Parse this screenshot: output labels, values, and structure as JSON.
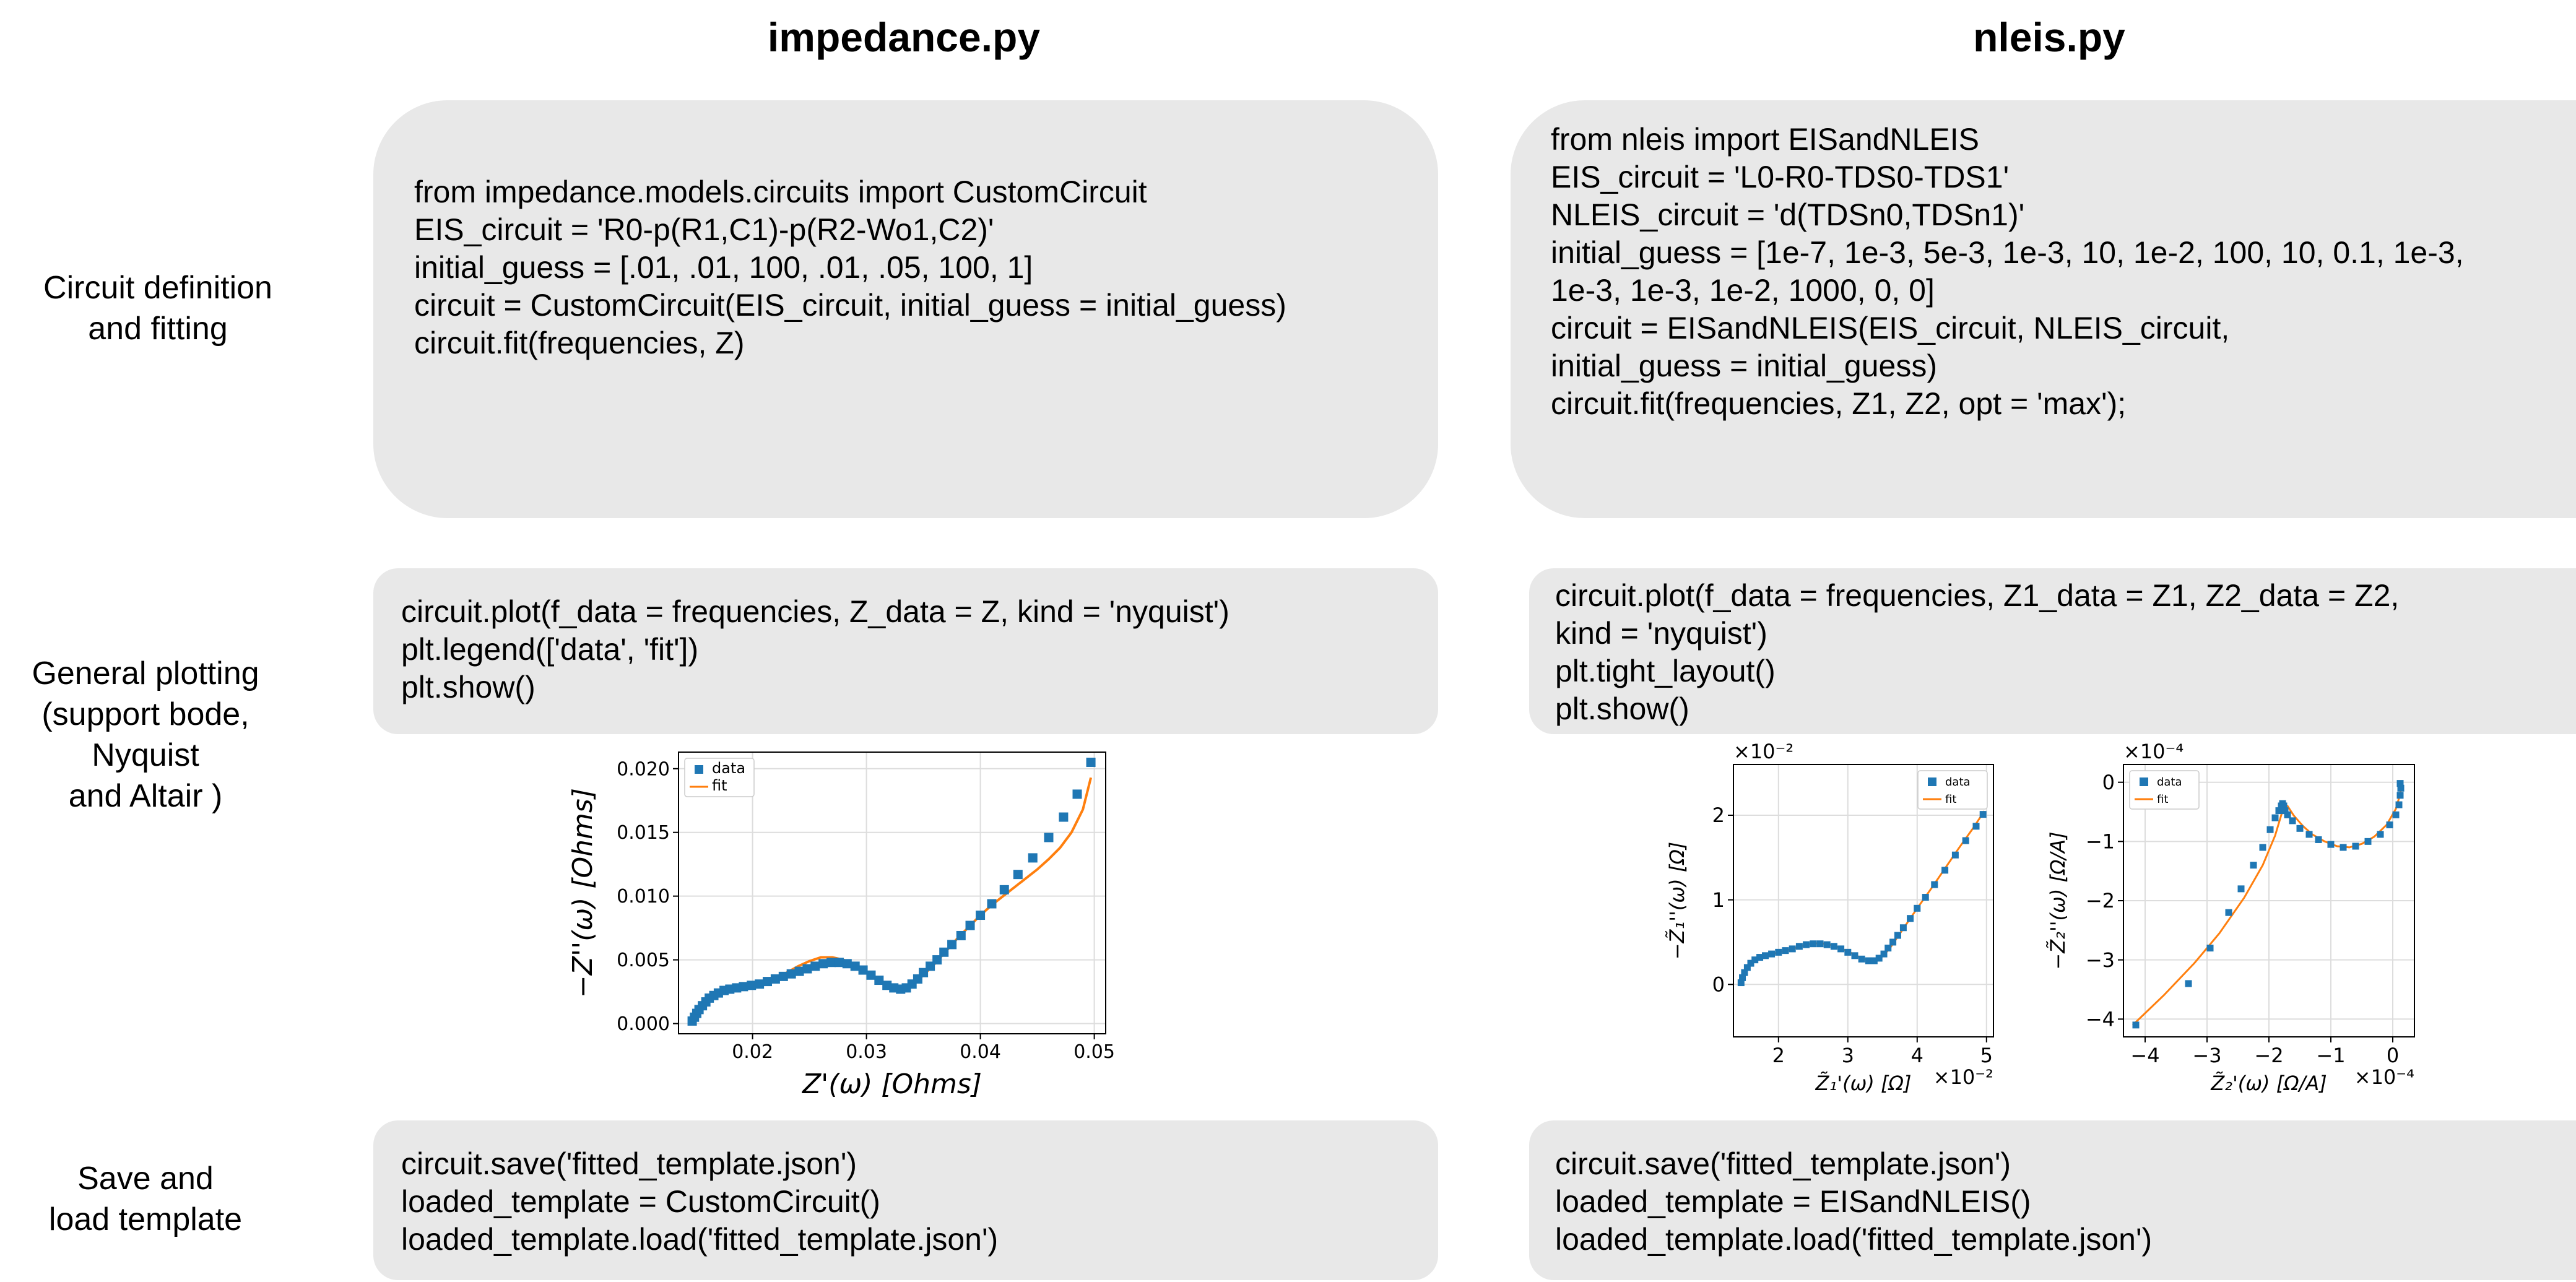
{
  "columns": {
    "left_title": "impedance.py",
    "right_title": "nleis.py"
  },
  "rows": {
    "fitting": "Circuit definition\nand fitting",
    "plotting": "General plotting\n(support bode,\nNyquist\nand Altair )",
    "save": "Save and\nload template"
  },
  "code": {
    "left_fit": [
      "from impedance.models.circuits import CustomCircuit",
      "",
      "EIS_circuit = 'R0-p(R1,C1)-p(R2-Wo1,C2)'",
      "initial_guess = [.01, .01, 100, .01, .05, 100, 1]",
      "",
      "circuit = CustomCircuit(EIS_circuit, initial_guess = initial_guess)",
      "circuit.fit(frequencies, Z)"
    ],
    "right_fit": [
      "from nleis import EISandNLEIS",
      "",
      "EIS_circuit = 'L0-R0-TDS0-TDS1'",
      "NLEIS_circuit = 'd(TDSn0,TDSn1)'",
      "",
      "initial_guess = [1e-7, 1e-3, 5e-3, 1e-3, 10, 1e-2, 100, 10, 0.1, 1e-3,",
      "1e-3, 1e-3, 1e-2, 1000, 0, 0]",
      "circuit = EISandNLEIS(EIS_circuit, NLEIS_circuit,",
      "initial_guess = initial_guess)",
      "circuit.fit(frequencies, Z1, Z2, opt = 'max');"
    ],
    "left_plot": [
      "circuit.plot(f_data = frequencies, Z_data = Z, kind = 'nyquist')",
      "plt.legend(['data', 'fit'])",
      "plt.show()"
    ],
    "right_plot": [
      "circuit.plot(f_data = frequencies, Z1_data = Z1, Z2_data = Z2,",
      "kind = 'nyquist')",
      "plt.tight_layout()",
      "plt.show()"
    ],
    "left_save": [
      "circuit.save('fitted_template.json')",
      "loaded_template = CustomCircuit()",
      "loaded_template.load('fitted_template.json')"
    ],
    "right_save": [
      "circuit.save('fitted_template.json')",
      "loaded_template = EISandNLEIS()",
      "loaded_template.load('fitted_template.json')"
    ]
  },
  "colors": {
    "data": "#1f77b4",
    "fit": "#ff7f0e",
    "box": "#e8e8e8"
  },
  "chart_data": [
    {
      "id": "eis_nyquist",
      "type": "scatter",
      "xlabel": "Z'(ω) [Ohms]",
      "ylabel": "−Z''(ω) [Ohms]",
      "xlim": [
        0.0135,
        0.051
      ],
      "ylim": [
        -0.0008,
        0.0213
      ],
      "xticks": [
        0.02,
        0.03,
        0.04,
        0.05
      ],
      "xtick_labels": [
        "0.02",
        "0.03",
        "0.04",
        "0.05"
      ],
      "yticks": [
        0.0,
        0.005,
        0.01,
        0.015,
        0.02
      ],
      "ytick_labels": [
        "0.000",
        "0.005",
        "0.010",
        "0.015",
        "0.020"
      ],
      "legend": [
        "data",
        "fit"
      ],
      "x_multiplier": "",
      "y_multiplier": "",
      "series": [
        {
          "name": "data",
          "kind": "markers",
          "x": [
            0.0147,
            0.0149,
            0.0151,
            0.0153,
            0.0156,
            0.0159,
            0.0162,
            0.0166,
            0.017,
            0.0175,
            0.018,
            0.0186,
            0.0192,
            0.0199,
            0.0206,
            0.0213,
            0.022,
            0.0227,
            0.0234,
            0.0241,
            0.0248,
            0.0255,
            0.0262,
            0.0269,
            0.0276,
            0.0283,
            0.029,
            0.0297,
            0.0304,
            0.0311,
            0.0318,
            0.0324,
            0.033,
            0.0335,
            0.034,
            0.0345,
            0.035,
            0.0356,
            0.0362,
            0.0368,
            0.0375,
            0.0383,
            0.0391,
            0.04,
            0.041,
            0.0421,
            0.0433,
            0.0446,
            0.046,
            0.0473,
            0.0485,
            0.0497
          ],
          "y": [
            0.0002,
            0.0005,
            0.0008,
            0.0011,
            0.0014,
            0.0017,
            0.002,
            0.0022,
            0.0024,
            0.0026,
            0.0027,
            0.0028,
            0.0029,
            0.003,
            0.0031,
            0.0033,
            0.0035,
            0.0037,
            0.0039,
            0.0041,
            0.0043,
            0.0045,
            0.0047,
            0.0048,
            0.0048,
            0.0047,
            0.0045,
            0.0042,
            0.0038,
            0.0034,
            0.003,
            0.0028,
            0.0027,
            0.0028,
            0.0031,
            0.0035,
            0.004,
            0.0045,
            0.005,
            0.0056,
            0.0062,
            0.0069,
            0.0077,
            0.0085,
            0.0094,
            0.0105,
            0.0117,
            0.013,
            0.0146,
            0.0162,
            0.018,
            0.0205
          ]
        },
        {
          "name": "fit",
          "kind": "line",
          "x": [
            0.0147,
            0.015,
            0.0155,
            0.0162,
            0.017,
            0.018,
            0.019,
            0.02,
            0.021,
            0.022,
            0.023,
            0.024,
            0.025,
            0.026,
            0.027,
            0.028,
            0.029,
            0.03,
            0.031,
            0.0318,
            0.0325,
            0.033,
            0.0335,
            0.034,
            0.035,
            0.036,
            0.037,
            0.038,
            0.039,
            0.04,
            0.041,
            0.042,
            0.043,
            0.044,
            0.045,
            0.046,
            0.047,
            0.048,
            0.049,
            0.0497
          ],
          "y": [
            0.0001,
            0.0007,
            0.0014,
            0.002,
            0.0025,
            0.0028,
            0.003,
            0.0031,
            0.0032,
            0.0035,
            0.004,
            0.0045,
            0.0049,
            0.0052,
            0.0052,
            0.005,
            0.0046,
            0.0041,
            0.0035,
            0.003,
            0.0027,
            0.0026,
            0.0027,
            0.003,
            0.0038,
            0.0047,
            0.0057,
            0.0067,
            0.0076,
            0.0085,
            0.0093,
            0.01,
            0.0107,
            0.0114,
            0.0121,
            0.0129,
            0.0138,
            0.015,
            0.0168,
            0.0193
          ]
        }
      ]
    },
    {
      "id": "nleis_z1",
      "type": "scatter",
      "xlabel": "Z̃₁'(ω) [Ω]",
      "ylabel": "−Z̃₁''(ω) [Ω]",
      "xlim": [
        1.35,
        5.1
      ],
      "ylim": [
        -0.62,
        2.6
      ],
      "xticks": [
        2,
        3,
        4,
        5
      ],
      "xtick_labels": [
        "2",
        "3",
        "4",
        "5"
      ],
      "yticks": [
        0,
        1,
        2
      ],
      "ytick_labels": [
        "0",
        "1",
        "2"
      ],
      "legend": [
        "data",
        "fit"
      ],
      "x_multiplier": "×10⁻²",
      "y_multiplier": "×10⁻²",
      "series": [
        {
          "name": "data",
          "kind": "markers",
          "x": [
            1.46,
            1.48,
            1.51,
            1.55,
            1.6,
            1.66,
            1.73,
            1.81,
            1.9,
            2.0,
            2.1,
            2.2,
            2.3,
            2.4,
            2.5,
            2.6,
            2.7,
            2.8,
            2.9,
            3.0,
            3.1,
            3.2,
            3.3,
            3.38,
            3.45,
            3.52,
            3.58,
            3.65,
            3.72,
            3.8,
            3.9,
            4.0,
            4.12,
            4.25,
            4.4,
            4.55,
            4.7,
            4.85,
            4.95
          ],
          "y": [
            0.02,
            0.08,
            0.14,
            0.2,
            0.25,
            0.29,
            0.32,
            0.34,
            0.36,
            0.38,
            0.4,
            0.42,
            0.45,
            0.47,
            0.48,
            0.48,
            0.47,
            0.45,
            0.42,
            0.38,
            0.34,
            0.3,
            0.28,
            0.28,
            0.31,
            0.36,
            0.43,
            0.5,
            0.58,
            0.67,
            0.78,
            0.9,
            1.03,
            1.18,
            1.35,
            1.53,
            1.7,
            1.87,
            2.01
          ]
        },
        {
          "name": "fit",
          "kind": "line",
          "x": [
            1.46,
            1.5,
            1.6,
            1.7,
            1.85,
            2.0,
            2.2,
            2.4,
            2.6,
            2.8,
            3.0,
            3.2,
            3.35,
            3.45,
            3.6,
            3.8,
            4.0,
            4.2,
            4.4,
            4.6,
            4.8,
            4.97
          ],
          "y": [
            0.0,
            0.12,
            0.24,
            0.3,
            0.35,
            0.38,
            0.42,
            0.47,
            0.49,
            0.46,
            0.39,
            0.31,
            0.27,
            0.29,
            0.42,
            0.66,
            0.9,
            1.13,
            1.37,
            1.61,
            1.84,
            2.05
          ]
        }
      ]
    },
    {
      "id": "nleis_z2",
      "type": "scatter",
      "xlabel": "Z̃₂'(ω) [Ω/A]",
      "ylabel": "−Z̃₂''(ω) [Ω/A]",
      "xlim": [
        -4.35,
        0.35
      ],
      "ylim": [
        -4.3,
        0.3
      ],
      "xticks": [
        -4,
        -3,
        -2,
        -1,
        0
      ],
      "xtick_labels": [
        "−4",
        "−3",
        "−2",
        "−1",
        "0"
      ],
      "yticks": [
        0,
        -1,
        -2,
        -3,
        -4
      ],
      "ytick_labels": [
        "0",
        "−1",
        "−2",
        "−3",
        "−4"
      ],
      "legend": [
        "data",
        "fit"
      ],
      "x_multiplier": "×10⁻⁴",
      "y_multiplier": "×10⁻⁴",
      "series": [
        {
          "name": "data",
          "kind": "markers",
          "x": [
            -4.15,
            -3.3,
            -2.95,
            -2.65,
            -2.45,
            -2.25,
            -2.1,
            -1.98,
            -1.9,
            -1.84,
            -1.8,
            -1.78,
            -1.76,
            -1.74,
            -1.7,
            -1.62,
            -1.5,
            -1.35,
            -1.2,
            -1.0,
            -0.8,
            -0.6,
            -0.4,
            -0.2,
            -0.05,
            0.05,
            0.1,
            0.12,
            0.13,
            0.12
          ],
          "y": [
            -4.1,
            -3.4,
            -2.8,
            -2.2,
            -1.8,
            -1.4,
            -1.1,
            -0.8,
            -0.6,
            -0.48,
            -0.4,
            -0.36,
            -0.4,
            -0.48,
            -0.55,
            -0.65,
            -0.78,
            -0.88,
            -0.97,
            -1.05,
            -1.1,
            -1.08,
            -1.0,
            -0.88,
            -0.72,
            -0.55,
            -0.38,
            -0.22,
            -0.1,
            -0.02
          ]
        },
        {
          "name": "fit",
          "kind": "line",
          "x": [
            -4.2,
            -3.7,
            -3.2,
            -2.8,
            -2.4,
            -2.1,
            -1.9,
            -1.8,
            -1.75,
            -1.7,
            -1.6,
            -1.45,
            -1.3,
            -1.1,
            -0.9,
            -0.7,
            -0.5,
            -0.3,
            -0.1,
            0.05,
            0.12,
            0.14
          ],
          "y": [
            -4.1,
            -3.6,
            -3.05,
            -2.55,
            -1.95,
            -1.4,
            -0.9,
            -0.55,
            -0.38,
            -0.4,
            -0.56,
            -0.74,
            -0.88,
            -1.0,
            -1.08,
            -1.1,
            -1.04,
            -0.92,
            -0.72,
            -0.45,
            -0.2,
            -0.05
          ]
        }
      ]
    }
  ]
}
